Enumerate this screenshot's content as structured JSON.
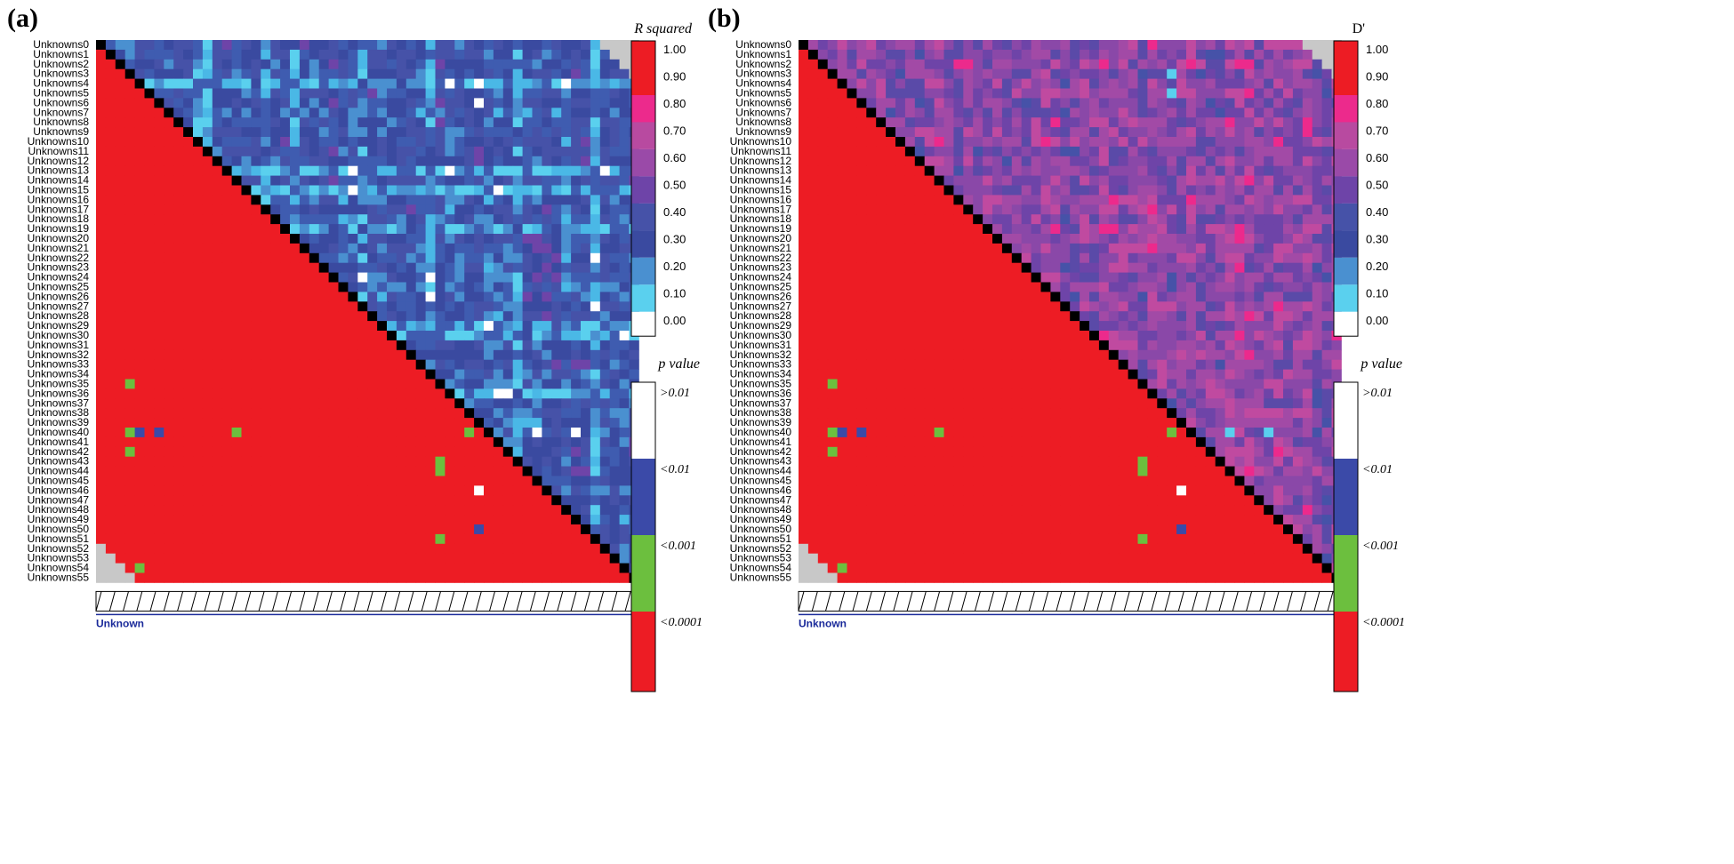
{
  "panels": [
    {
      "id": "a",
      "label": "(a)",
      "upper_legend_title": "R squared",
      "upper_measure": "r2"
    },
    {
      "id": "b",
      "label": "(b)",
      "upper_legend_title": "D'",
      "upper_measure": "dprime"
    }
  ],
  "row_labels": [
    "Unknowns0",
    "Unknowns1",
    "Unknowns2",
    "Unknowns3",
    "Unknowns4",
    "Unknowns5",
    "Unknowns6",
    "Unknowns7",
    "Unknowns8",
    "Unknowns9",
    "Unknowns10",
    "Unknowns11",
    "Unknowns12",
    "Unknowns13",
    "Unknowns14",
    "Unknowns15",
    "Unknowns16",
    "Unknowns17",
    "Unknowns18",
    "Unknowns19",
    "Unknowns20",
    "Unknowns21",
    "Unknowns22",
    "Unknowns23",
    "Unknowns24",
    "Unknowns25",
    "Unknowns26",
    "Unknowns27",
    "Unknowns28",
    "Unknowns29",
    "Unknowns30",
    "Unknowns31",
    "Unknowns32",
    "Unknowns33",
    "Unknowns34",
    "Unknowns35",
    "Unknowns36",
    "Unknowns37",
    "Unknowns38",
    "Unknowns39",
    "Unknowns40",
    "Unknowns41",
    "Unknowns42",
    "Unknowns43",
    "Unknowns44",
    "Unknowns45",
    "Unknowns46",
    "Unknowns47",
    "Unknowns48",
    "Unknowns49",
    "Unknowns50",
    "Unknowns51",
    "Unknowns52",
    "Unknowns53",
    "Unknowns54",
    "Unknowns55"
  ],
  "bottom_track_label": "Unknown",
  "scale_legend": {
    "ticks": [
      "1.00",
      "0.90",
      "0.80",
      "0.70",
      "0.60",
      "0.50",
      "0.40",
      "0.30",
      "0.20",
      "0.10",
      "0.00"
    ],
    "colors": [
      "#ed1c24",
      "#ed1c24",
      "#ec2a8c",
      "#b84aa0",
      "#9a4aa8",
      "#6e44a8",
      "#4652a8",
      "#3a4aa0",
      "#4a90d0",
      "#5ad0ee",
      "#ffffff"
    ]
  },
  "p_legend": {
    "title": "p value",
    "ticks": [
      ">0.01",
      "<0.01",
      "<0.001",
      "<0.0001"
    ],
    "colors": [
      "#ffffff",
      "#3b4aa8",
      "#6cbf3e",
      "#ed1c24"
    ]
  },
  "colors": {
    "diagonal": "#000000",
    "missing": "#c8c8c8",
    "p_lt_0.0001": "#ed1c24",
    "p_lt_0.001": "#6cbf3e",
    "p_lt_0.01": "#3b4aa8",
    "p_gt_0.01": "#ffffff"
  },
  "chart_data": [
    {
      "type": "heatmap",
      "panel": "a",
      "title": "",
      "upper_measure": "R squared",
      "lower_measure": "p value",
      "markers": 56,
      "lower_exceptions": [
        {
          "row": 35,
          "col": 3,
          "p": "<0.001"
        },
        {
          "row": 40,
          "col": 3,
          "p": "<0.001"
        },
        {
          "row": 40,
          "col": 4,
          "p": "<0.01"
        },
        {
          "row": 40,
          "col": 6,
          "p": "<0.01"
        },
        {
          "row": 40,
          "col": 14,
          "p": "<0.001"
        },
        {
          "row": 40,
          "col": 38,
          "p": "<0.001"
        },
        {
          "row": 42,
          "col": 3,
          "p": "<0.001"
        },
        {
          "row": 43,
          "col": 35,
          "p": "<0.001"
        },
        {
          "row": 44,
          "col": 35,
          "p": "<0.001"
        },
        {
          "row": 46,
          "col": 39,
          "p": ">0.01"
        },
        {
          "row": 50,
          "col": 39,
          "p": "<0.01"
        },
        {
          "row": 51,
          "col": 35,
          "p": "<0.001"
        },
        {
          "row": 54,
          "col": 4,
          "p": "<0.001"
        }
      ],
      "upper_white_cells": [
        {
          "row": 4,
          "col": 39
        },
        {
          "row": 6,
          "col": 39
        },
        {
          "row": 40,
          "col": 45
        },
        {
          "row": 40,
          "col": 49
        }
      ]
    },
    {
      "type": "heatmap",
      "panel": "b",
      "title": "",
      "upper_measure": "D'",
      "lower_measure": "p value",
      "markers": 56,
      "lower_exceptions": [
        {
          "row": 35,
          "col": 3,
          "p": "<0.001"
        },
        {
          "row": 40,
          "col": 3,
          "p": "<0.001"
        },
        {
          "row": 40,
          "col": 4,
          "p": "<0.01"
        },
        {
          "row": 40,
          "col": 6,
          "p": "<0.01"
        },
        {
          "row": 40,
          "col": 14,
          "p": "<0.001"
        },
        {
          "row": 40,
          "col": 38,
          "p": "<0.001"
        },
        {
          "row": 42,
          "col": 3,
          "p": "<0.001"
        },
        {
          "row": 43,
          "col": 35,
          "p": "<0.001"
        },
        {
          "row": 44,
          "col": 35,
          "p": "<0.001"
        },
        {
          "row": 46,
          "col": 39,
          "p": ">0.01"
        },
        {
          "row": 50,
          "col": 39,
          "p": "<0.01"
        },
        {
          "row": 51,
          "col": 35,
          "p": "<0.001"
        },
        {
          "row": 54,
          "col": 4,
          "p": "<0.001"
        }
      ],
      "upper_white_cells": []
    }
  ]
}
